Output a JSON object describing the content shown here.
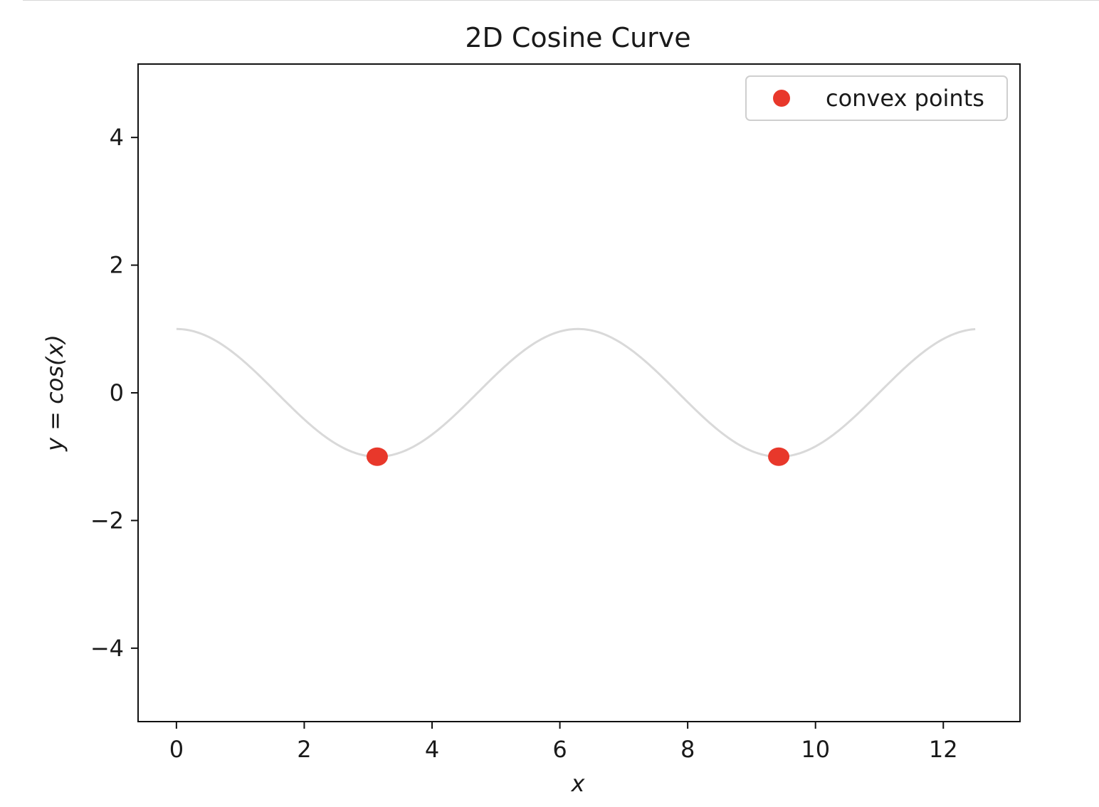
{
  "chart_data": {
    "type": "scatter",
    "title": "2D Cosine Curve",
    "xlabel": "x",
    "ylabel": "y = cos(x)",
    "xlim": [
      -0.6,
      13.2
    ],
    "ylim": [
      -5.15,
      5.15
    ],
    "x_ticks": [
      {
        "value": 0,
        "label": "0"
      },
      {
        "value": 2,
        "label": "2"
      },
      {
        "value": 4,
        "label": "4"
      },
      {
        "value": 6,
        "label": "6"
      },
      {
        "value": 8,
        "label": "8"
      },
      {
        "value": 10,
        "label": "10"
      },
      {
        "value": 12,
        "label": "12"
      }
    ],
    "y_ticks": [
      {
        "value": 4,
        "label": "4"
      },
      {
        "value": 2,
        "label": "2"
      },
      {
        "value": 0,
        "label": "0"
      },
      {
        "value": -2,
        "label": "−2"
      },
      {
        "value": -4,
        "label": "−4"
      }
    ],
    "grid": false,
    "legend_position": "top-right",
    "curve": {
      "function": "cos(x)",
      "x_range": [
        0,
        12.5
      ],
      "color": "#d9d9d9"
    },
    "series": [
      {
        "name": "convex points",
        "color": "#e8382b",
        "points": [
          {
            "x": 3.1416,
            "y": -1
          },
          {
            "x": 9.4248,
            "y": -1
          }
        ]
      }
    ]
  }
}
